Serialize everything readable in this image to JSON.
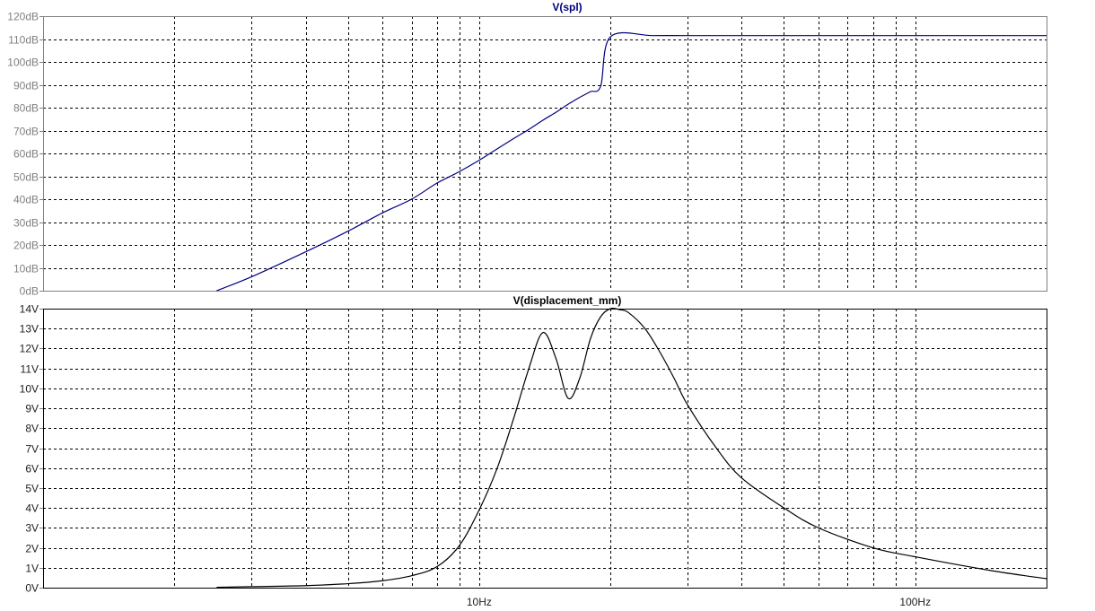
{
  "colors": {
    "background": "#ffffff",
    "spl_trace": "#000080",
    "displacement_trace": "#000000",
    "top_axis_text": "#808080",
    "bottom_axis_text": "#202020"
  },
  "chart_data": [
    {
      "type": "line",
      "title": "V(spl)",
      "xscale": "log",
      "xlim": [
        1,
        200
      ],
      "ylim": [
        0,
        120
      ],
      "ytick_labels": [
        "0dB",
        "10dB",
        "20dB",
        "30dB",
        "40dB",
        "50dB",
        "60dB",
        "70dB",
        "80dB",
        "90dB",
        "100dB",
        "110dB",
        "120dB"
      ],
      "xtick_labels": [],
      "grid": true,
      "series": [
        {
          "name": "V(spl)",
          "color": "#000080",
          "x": [
            2.5,
            3,
            4,
            5,
            6,
            7,
            8,
            9,
            10,
            11,
            12,
            13,
            14,
            15,
            16,
            17,
            18,
            19,
            20,
            25,
            30,
            40,
            60,
            100,
            150,
            200
          ],
          "y": [
            0,
            6,
            17,
            26,
            34,
            40,
            47,
            52,
            57,
            62,
            66.5,
            70.5,
            74.5,
            78,
            81.5,
            84.5,
            87,
            89.5,
            111,
            111.5,
            111.5,
            111.5,
            111.5,
            111.5,
            111.5,
            111.5
          ]
        }
      ]
    },
    {
      "type": "line",
      "title": "V(displacement_mm)",
      "xscale": "log",
      "xlim": [
        1,
        200
      ],
      "ylim": [
        0,
        14
      ],
      "ytick_labels": [
        "0V",
        "1V",
        "2V",
        "3V",
        "4V",
        "5V",
        "6V",
        "7V",
        "8V",
        "9V",
        "10V",
        "11V",
        "12V",
        "13V",
        "14V"
      ],
      "xtick_labels": [
        "10Hz",
        "100Hz"
      ],
      "grid": true,
      "series": [
        {
          "name": "V(displacement_mm)",
          "color": "#000000",
          "x": [
            2.5,
            3,
            4,
            5,
            6,
            7,
            8,
            9,
            10,
            11,
            12,
            13,
            14,
            15,
            16,
            17,
            18,
            19,
            20,
            21,
            22,
            24,
            26,
            28,
            30,
            35,
            40,
            50,
            60,
            80,
            100,
            150,
            200
          ],
          "y": [
            0.02,
            0.05,
            0.1,
            0.2,
            0.35,
            0.6,
            1.05,
            2.1,
            3.9,
            6.0,
            8.5,
            11.0,
            12.8,
            11.5,
            9.5,
            10.5,
            12.5,
            13.6,
            14.0,
            13.95,
            13.8,
            13.0,
            11.8,
            10.5,
            9.2,
            7.0,
            5.5,
            4.0,
            3.0,
            2.0,
            1.55,
            0.85,
            0.45
          ]
        }
      ]
    }
  ]
}
